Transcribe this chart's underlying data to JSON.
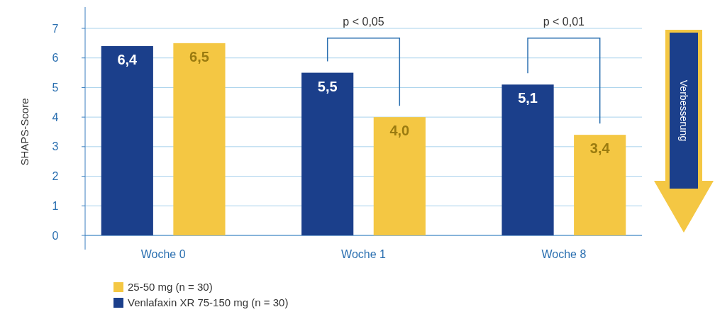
{
  "chart_data": {
    "type": "bar",
    "ylabel": "SHAPS-Score",
    "categories": [
      "Woche 0",
      "Woche 1",
      "Woche 8"
    ],
    "series": [
      {
        "name": "Venlafaxin XR 75-150 mg (n = 30)",
        "color": "#1b3f8b",
        "values": [
          6.4,
          5.5,
          5.1
        ],
        "value_labels": [
          "6,4",
          "5,5",
          "5,1"
        ]
      },
      {
        "name": "25-50 mg (n = 30)",
        "color": "#f4c743",
        "values": [
          6.5,
          4.0,
          3.4
        ],
        "value_labels": [
          "6,5",
          "4,0",
          "3,4"
        ]
      }
    ],
    "ylim": [
      0,
      7
    ],
    "yticks": [
      0,
      1,
      2,
      3,
      4,
      5,
      6,
      7
    ],
    "grid": "y",
    "legend": "bottom left",
    "annotations": [
      "p < 0,05",
      "p < 0,01",
      "Verbesserung"
    ]
  }
}
